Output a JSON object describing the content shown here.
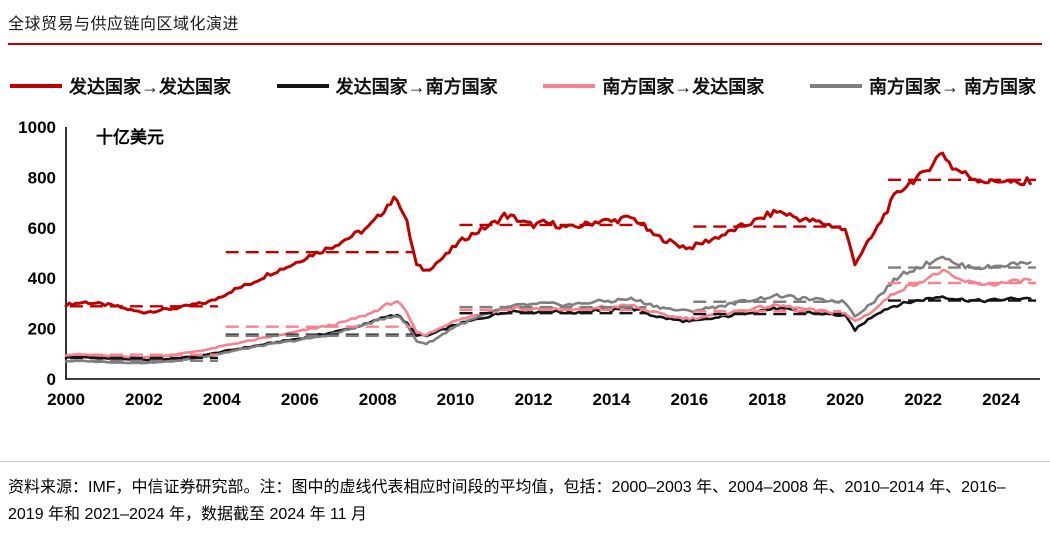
{
  "header": {
    "title": "全球贸易与供应链向区域化演进",
    "accent_color": "#c00000"
  },
  "footer": {
    "source_note": "资料来源：IMF，中信证券研究部。注：图中的虚线代表相应时间段的平均值，包括：2000–2003 年、2004–2008 年、2010–2014 年、2016–2019 年和 2021–2024 年，数据截至 2024 年 11 月"
  },
  "chart_data": {
    "type": "line",
    "title": "全球贸易与供应链向区域化演进",
    "ylabel": "十亿美元",
    "xlabel": "",
    "xlim": [
      2000,
      2025
    ],
    "ylim": [
      0,
      1000
    ],
    "y_ticks": [
      0,
      200,
      400,
      600,
      800,
      1000
    ],
    "x_ticks": [
      2000,
      2002,
      2004,
      2006,
      2008,
      2010,
      2012,
      2014,
      2016,
      2018,
      2020,
      2022,
      2024
    ],
    "x_start_year": 2000,
    "x_step_years": 0.25,
    "data_through": "2024 年 11 月",
    "grid": false,
    "legend_position": "top",
    "render_noise": 0.02,
    "avg_periods": [
      [
        2000,
        2003
      ],
      [
        2004,
        2008
      ],
      [
        2010,
        2014
      ],
      [
        2016,
        2019
      ],
      [
        2021,
        2024
      ]
    ],
    "series": [
      {
        "name": "发达国家→发达国家",
        "color": "#c00000",
        "values": [
          295,
          300,
          305,
          300,
          295,
          290,
          280,
          270,
          265,
          270,
          275,
          280,
          285,
          295,
          300,
          310,
          330,
          350,
          365,
          380,
          400,
          420,
          435,
          450,
          470,
          490,
          505,
          520,
          540,
          560,
          580,
          600,
          640,
          690,
          720,
          620,
          450,
          430,
          460,
          490,
          530,
          560,
          580,
          600,
          620,
          650,
          640,
          620,
          610,
          620,
          615,
          605,
          600,
          610,
          620,
          630,
          625,
          635,
          640,
          620,
          580,
          560,
          545,
          530,
          520,
          535,
          550,
          565,
          580,
          600,
          615,
          630,
          650,
          665,
          655,
          640,
          630,
          625,
          615,
          605,
          590,
          460,
          520,
          580,
          650,
          720,
          760,
          790,
          810,
          860,
          900,
          840,
          820,
          800,
          790,
          780,
          790,
          780,
          770,
          790
        ]
      },
      {
        "name": "发达国家→南方国家",
        "color": "#141414",
        "values": [
          85,
          88,
          86,
          84,
          82,
          80,
          78,
          76,
          75,
          76,
          78,
          80,
          85,
          90,
          95,
          100,
          108,
          115,
          122,
          128,
          135,
          142,
          148,
          155,
          160,
          168,
          175,
          182,
          190,
          200,
          210,
          220,
          235,
          250,
          255,
          220,
          175,
          170,
          185,
          200,
          215,
          225,
          235,
          245,
          255,
          265,
          270,
          268,
          265,
          270,
          268,
          265,
          262,
          268,
          272,
          275,
          272,
          278,
          280,
          270,
          255,
          245,
          238,
          232,
          228,
          232,
          238,
          244,
          250,
          258,
          264,
          270,
          275,
          280,
          276,
          270,
          265,
          262,
          258,
          255,
          250,
          195,
          225,
          255,
          275,
          290,
          300,
          308,
          315,
          322,
          328,
          320,
          315,
          312,
          310,
          312,
          315,
          318,
          320,
          322
        ]
      },
      {
        "name": "南方国家→发达国家",
        "color": "#f8828f",
        "values": [
          95,
          98,
          96,
          94,
          92,
          90,
          88,
          86,
          86,
          88,
          92,
          96,
          102,
          108,
          114,
          120,
          130,
          138,
          146,
          152,
          160,
          168,
          175,
          182,
          190,
          198,
          205,
          212,
          220,
          232,
          244,
          256,
          275,
          295,
          310,
          260,
          185,
          175,
          195,
          215,
          230,
          242,
          252,
          262,
          270,
          280,
          285,
          282,
          278,
          282,
          280,
          276,
          274,
          278,
          282,
          286,
          284,
          290,
          292,
          282,
          268,
          258,
          250,
          244,
          240,
          244,
          250,
          256,
          262,
          270,
          276,
          282,
          288,
          292,
          288,
          282,
          276,
          272,
          268,
          264,
          258,
          230,
          250,
          275,
          310,
          340,
          360,
          375,
          390,
          410,
          430,
          405,
          390,
          382,
          378,
          375,
          380,
          385,
          390,
          395
        ]
      },
      {
        "name": "南方国家→ 南方国家",
        "color": "#7f7f7f",
        "values": [
          70,
          72,
          71,
          69,
          68,
          66,
          65,
          64,
          64,
          66,
          68,
          71,
          76,
          82,
          88,
          94,
          102,
          110,
          118,
          125,
          132,
          138,
          144,
          150,
          155,
          162,
          168,
          175,
          185,
          196,
          208,
          220,
          232,
          245,
          252,
          215,
          150,
          140,
          160,
          185,
          210,
          225,
          240,
          255,
          268,
          280,
          290,
          295,
          295,
          300,
          298,
          295,
          295,
          300,
          305,
          310,
          308,
          315,
          318,
          308,
          295,
          285,
          278,
          272,
          270,
          275,
          282,
          288,
          295,
          305,
          312,
          318,
          325,
          330,
          328,
          322,
          318,
          315,
          312,
          310,
          305,
          250,
          280,
          310,
          350,
          390,
          420,
          435,
          450,
          470,
          490,
          460,
          450,
          445,
          442,
          445,
          450,
          455,
          460,
          465
        ]
      }
    ]
  }
}
